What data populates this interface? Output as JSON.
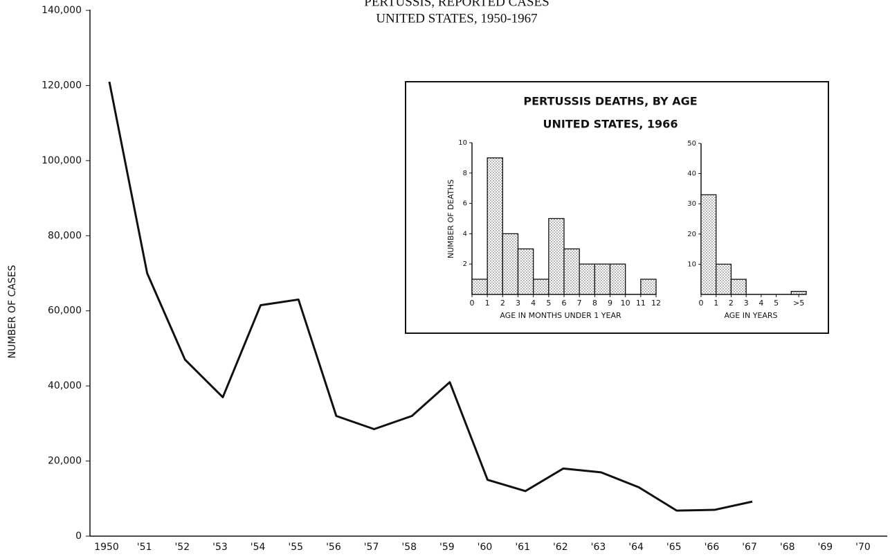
{
  "chart_data": [
    {
      "type": "line",
      "title": "PERTUSSIS, REPORTED CASES",
      "subtitle": "UNITED STATES, 1950-1967",
      "ylabel": "NUMBER OF CASES",
      "categories": [
        "1950",
        "'51",
        "'52",
        "'53",
        "'54",
        "'55",
        "'56",
        "'57",
        "'58",
        "'59",
        "'60",
        "'61",
        "'62",
        "'63",
        "'64",
        "'65",
        "'66",
        "'67",
        "'68",
        "'69",
        "'70"
      ],
      "series": [
        {
          "name": "Cases",
          "color": "#111111",
          "values": [
            121000,
            70000,
            47000,
            37000,
            61500,
            63000,
            32000,
            28500,
            32000,
            41000,
            15000,
            12000,
            18000,
            17000,
            13000,
            6800,
            7000,
            9200,
            null,
            null,
            null
          ]
        }
      ],
      "ylim": [
        0,
        140000
      ],
      "yticks": [
        0,
        {
          "value": 20000,
          "label": "20,000"
        },
        {
          "value": 40000,
          "label": "40,000"
        },
        {
          "value": 60000,
          "label": "60,000"
        },
        {
          "value": 80000,
          "label": "80,000"
        },
        {
          "value": 100000,
          "label": "100,000"
        },
        {
          "value": 120000,
          "label": "120,000"
        },
        {
          "value": 140000,
          "label": "140,000"
        }
      ]
    },
    {
      "type": "histogram",
      "title": "PERTUSSIS DEATHS, BY AGE",
      "subtitle": "UNITED STATES, 1966",
      "xlabel": "AGE IN MONTHS UNDER 1 YEAR",
      "ylabel": "NUMBER OF DEATHS",
      "bins": [
        0,
        1,
        2,
        3,
        4,
        5,
        6,
        7,
        8,
        9,
        10,
        11,
        12
      ],
      "counts": [
        1,
        9,
        4,
        3,
        1,
        5,
        3,
        2,
        2,
        2,
        0,
        1
      ],
      "xlim": [
        0,
        12
      ],
      "xticks": [
        0,
        1,
        2,
        3,
        4,
        5,
        6,
        7,
        8,
        9,
        10,
        11,
        12
      ],
      "ylim": [
        0,
        10
      ],
      "yticks": [
        2,
        4,
        6,
        8,
        10
      ]
    },
    {
      "type": "histogram",
      "xlabel": "AGE IN YEARS",
      "bins": [
        0,
        1,
        2,
        3,
        4,
        5,
        6,
        7
      ],
      "counts": [
        33,
        10,
        5,
        0,
        0,
        0,
        1
      ],
      "xlim": [
        0,
        7
      ],
      "xticks": [
        0,
        1,
        2,
        3,
        4,
        5,
        {
          "value": 6.5,
          "label": ">5"
        }
      ],
      "ylim": [
        0,
        50
      ],
      "yticks": [
        10,
        20,
        30,
        40,
        50
      ]
    }
  ]
}
